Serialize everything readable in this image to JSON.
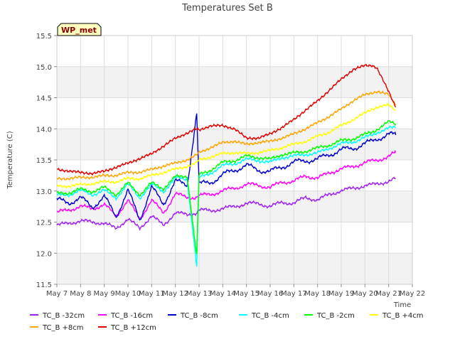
{
  "chart_data": {
    "type": "line",
    "title": "Temperatures Set B",
    "xlabel": "Time",
    "ylabel": "Temperature (C)",
    "badge": "WP_met",
    "grid": true,
    "legend_position": "bottom",
    "xlim": [
      0,
      15
    ],
    "ylim": [
      11.5,
      15.5
    ],
    "x_ticks": [
      {
        "v": 0,
        "label": "May 7"
      },
      {
        "v": 1,
        "label": "May 8"
      },
      {
        "v": 2,
        "label": "May 9"
      },
      {
        "v": 3,
        "label": "May 10"
      },
      {
        "v": 4,
        "label": "May 11"
      },
      {
        "v": 5,
        "label": "May 12"
      },
      {
        "v": 6,
        "label": "May 13"
      },
      {
        "v": 7,
        "label": "May 14"
      },
      {
        "v": 8,
        "label": "May 15"
      },
      {
        "v": 9,
        "label": "May 16"
      },
      {
        "v": 10,
        "label": "May 17"
      },
      {
        "v": 11,
        "label": "May 18"
      },
      {
        "v": 12,
        "label": "May 19"
      },
      {
        "v": 13,
        "label": "May 20"
      },
      {
        "v": 14,
        "label": "May 21"
      },
      {
        "v": 15,
        "label": "May 22"
      }
    ],
    "y_ticks": [
      "11.5",
      "12.0",
      "12.5",
      "13.0",
      "13.5",
      "14.0",
      "14.5",
      "15.0",
      "15.5"
    ],
    "x": [
      0,
      0.5,
      1,
      1.5,
      2,
      2.5,
      3,
      3.5,
      4,
      4.5,
      5,
      5.5,
      5.9,
      6,
      6.5,
      7,
      7.5,
      8,
      8.5,
      9,
      9.5,
      10,
      10.5,
      11,
      11.5,
      12,
      12.5,
      13,
      13.3,
      13.5,
      14,
      14.3
    ],
    "series": [
      {
        "name": "TC_B -32cm",
        "color": "#a020f0",
        "values": [
          12.45,
          12.48,
          12.52,
          12.5,
          12.48,
          12.4,
          12.55,
          12.4,
          12.6,
          12.45,
          12.65,
          12.62,
          12.65,
          12.7,
          12.68,
          12.72,
          12.75,
          12.8,
          12.8,
          12.75,
          12.82,
          12.8,
          12.9,
          12.85,
          12.95,
          13.0,
          13.05,
          13.08,
          13.1,
          13.12,
          13.15,
          13.2
        ]
      },
      {
        "name": "TC_B -16cm",
        "color": "#ff00ff",
        "values": [
          12.65,
          12.7,
          12.75,
          12.72,
          12.78,
          12.6,
          12.85,
          12.55,
          12.85,
          12.65,
          12.95,
          12.9,
          12.9,
          12.92,
          12.95,
          13.0,
          13.05,
          13.1,
          13.1,
          13.05,
          13.15,
          13.15,
          13.25,
          13.2,
          13.3,
          13.35,
          13.4,
          13.45,
          13.48,
          13.5,
          13.55,
          13.62
        ]
      },
      {
        "name": "TC_B -8cm",
        "color": "#0000cd",
        "values": [
          12.85,
          12.82,
          12.88,
          12.75,
          12.9,
          12.6,
          13.0,
          12.55,
          13.05,
          12.8,
          13.15,
          13.1,
          14.25,
          13.1,
          13.15,
          13.25,
          13.35,
          13.4,
          13.35,
          13.3,
          13.4,
          13.45,
          13.5,
          13.5,
          13.6,
          13.65,
          13.7,
          13.75,
          13.8,
          13.85,
          13.9,
          13.9
        ]
      },
      {
        "name": "TC_B -4cm",
        "color": "#00ffff",
        "values": [
          12.92,
          12.95,
          13.0,
          12.95,
          13.0,
          12.9,
          13.1,
          12.9,
          13.1,
          13.0,
          13.2,
          13.2,
          11.78,
          13.2,
          13.3,
          13.4,
          13.45,
          13.5,
          13.5,
          13.45,
          13.55,
          13.55,
          13.6,
          13.6,
          13.7,
          13.75,
          13.8,
          13.85,
          13.9,
          13.95,
          14.0,
          14.02
        ]
      },
      {
        "name": "TC_B -2cm",
        "color": "#00ff00",
        "values": [
          12.95,
          12.98,
          13.02,
          13.0,
          13.05,
          12.95,
          13.12,
          12.95,
          13.12,
          13.05,
          13.22,
          13.25,
          11.95,
          13.25,
          13.35,
          13.45,
          13.5,
          13.55,
          13.55,
          13.5,
          13.6,
          13.6,
          13.65,
          13.68,
          13.75,
          13.8,
          13.85,
          13.9,
          13.95,
          14.0,
          14.1,
          14.08
        ]
      },
      {
        "name": "TC_B +4cm",
        "color": "#ffff00",
        "values": [
          13.08,
          13.08,
          13.1,
          13.12,
          13.15,
          13.15,
          13.2,
          13.2,
          13.25,
          13.3,
          13.35,
          13.4,
          13.45,
          13.5,
          13.55,
          13.6,
          13.62,
          13.6,
          13.62,
          13.65,
          13.7,
          13.75,
          13.8,
          13.88,
          13.95,
          14.05,
          14.15,
          14.25,
          14.32,
          14.35,
          14.38,
          14.3
        ]
      },
      {
        "name": "TC_B +8cm",
        "color": "#ffa500",
        "values": [
          13.2,
          13.2,
          13.22,
          13.22,
          13.25,
          13.25,
          13.3,
          13.3,
          13.35,
          13.4,
          13.45,
          13.5,
          13.58,
          13.62,
          13.7,
          13.78,
          13.8,
          13.75,
          13.78,
          13.8,
          13.85,
          13.92,
          14.0,
          14.1,
          14.2,
          14.32,
          14.45,
          14.55,
          14.58,
          14.6,
          14.55,
          14.38
        ]
      },
      {
        "name": "TC_B +12cm",
        "color": "#e00000",
        "values": [
          13.35,
          13.32,
          13.3,
          13.28,
          13.32,
          13.38,
          13.45,
          13.52,
          13.6,
          13.72,
          13.85,
          13.93,
          14.0,
          13.98,
          14.05,
          14.05,
          14.0,
          13.85,
          13.85,
          13.92,
          14.02,
          14.15,
          14.3,
          14.45,
          14.62,
          14.8,
          14.95,
          15.02,
          15.02,
          14.98,
          14.6,
          14.35
        ]
      }
    ]
  }
}
